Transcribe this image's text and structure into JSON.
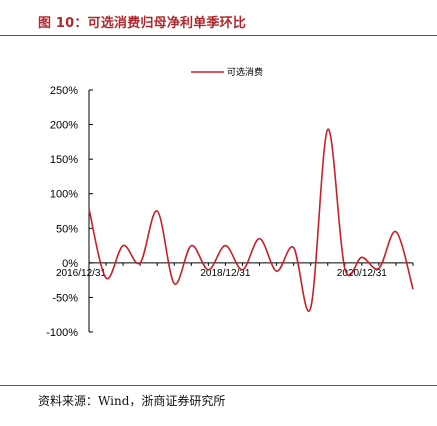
{
  "figure": {
    "title": "图 10：可选消费归母净利单季环比",
    "source": "资料来源：Wind，浙商证券研究所"
  },
  "colors": {
    "series": "#c8202a",
    "title": "#b0282d",
    "axis": "#000000"
  },
  "chart_data": {
    "type": "line",
    "title": "",
    "xlabel": "",
    "ylabel": "",
    "ylim": [
      -100,
      250
    ],
    "yticks": [
      250,
      200,
      150,
      100,
      50,
      0,
      -50,
      -100
    ],
    "ytick_labels": [
      "250%",
      "200%",
      "150%",
      "100%",
      "50%",
      "0%",
      "-50%",
      "-100%"
    ],
    "xticks": [
      {
        "label": "2016/12/31",
        "index": 0
      },
      {
        "label": "2018/12/31",
        "index": 8
      },
      {
        "label": "2020/12/31",
        "index": 16
      }
    ],
    "legend": {
      "position": "top-right",
      "entries": [
        "可选消费"
      ]
    },
    "grid": false,
    "series": [
      {
        "name": "可选消费",
        "values": [
          78,
          -22,
          25,
          0,
          75,
          -30,
          25,
          -10,
          25,
          -10,
          35,
          -12,
          22,
          -65,
          193,
          -8,
          8,
          -8,
          45,
          -38
        ]
      }
    ]
  }
}
